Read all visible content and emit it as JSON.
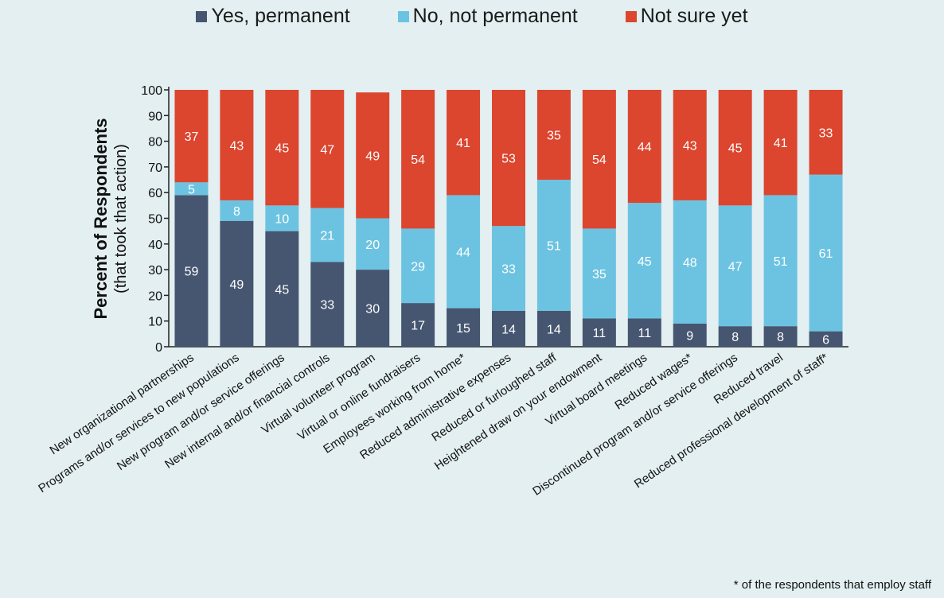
{
  "chart_data": {
    "type": "bar",
    "stacked": true,
    "ylabel": "Percent of Respondents",
    "ylabel_sub": "(that took that action)",
    "ylim": [
      0,
      100
    ],
    "yticks": [
      0,
      10,
      20,
      30,
      40,
      50,
      60,
      70,
      80,
      90,
      100
    ],
    "legend_position": "top",
    "categories": [
      "New organizational partnerships",
      "Programs and/or services to new populations",
      "New program and/or service offerings",
      "New internal and/or financial controls",
      "Virtual volunteer program",
      "Virtual or online fundraisers",
      "Employees working from home*",
      "Reduced administrative expenses",
      "Reduced or furloughed staff",
      "Heightened draw on your endowment",
      "Virtual board meetings",
      "Reduced wages*",
      "Discontinued program and/or service offerings",
      "Reduced travel",
      "Reduced professional development of staff*"
    ],
    "series": [
      {
        "name": "Yes, permanent",
        "color": "#465670",
        "values": [
          59,
          49,
          45,
          33,
          30,
          17,
          15,
          14,
          14,
          11,
          11,
          9,
          8,
          8,
          6
        ]
      },
      {
        "name": "No, not permanent",
        "color": "#6cc3e1",
        "values": [
          5,
          8,
          10,
          21,
          20,
          29,
          44,
          33,
          51,
          35,
          45,
          48,
          47,
          51,
          61
        ]
      },
      {
        "name": "Not sure yet",
        "color": "#dc452e",
        "values": [
          37,
          43,
          45,
          47,
          49,
          54,
          41,
          53,
          35,
          54,
          44,
          43,
          45,
          41,
          33
        ]
      }
    ],
    "footnote": "* of the respondents that employ staff"
  }
}
